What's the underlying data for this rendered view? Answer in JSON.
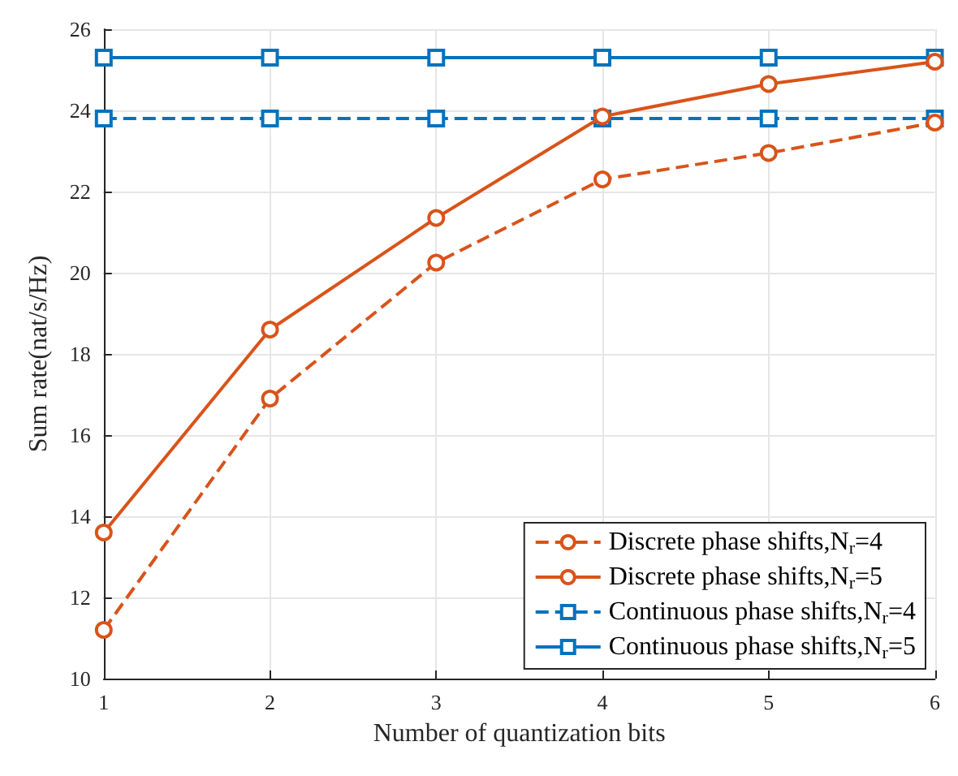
{
  "chart_data": {
    "type": "line",
    "xlabel": "Number of quantization bits",
    "ylabel": "Sum rate(nat/s/Hz)",
    "x": [
      1,
      2,
      3,
      4,
      5,
      6
    ],
    "xlim": [
      1,
      6
    ],
    "xticks": [
      1,
      2,
      3,
      4,
      5,
      6
    ],
    "ylim": [
      10,
      26
    ],
    "yticks": [
      10,
      12,
      14,
      16,
      18,
      20,
      22,
      24,
      26
    ],
    "grid": true,
    "legend": "bottom right",
    "series": [
      {
        "name": "Discrete phase shifts,N$_{r}$=4",
        "color": "#d95319",
        "marker": "circle",
        "line_style": "dashed",
        "values": [
          11.2,
          16.9,
          20.25,
          22.3,
          22.95,
          23.7
        ]
      },
      {
        "name": "Discrete phase shifts,N$_{r}$=5",
        "color": "#d95319",
        "marker": "circle",
        "line_style": "solid",
        "values": [
          13.6,
          18.6,
          21.35,
          23.85,
          24.65,
          25.2
        ]
      },
      {
        "name": "Continuous phase shifts,N$_{r}$=4",
        "color": "#0072bd",
        "marker": "square",
        "line_style": "dashed",
        "values": [
          23.8,
          23.8,
          23.8,
          23.8,
          23.8,
          23.8
        ]
      },
      {
        "name": "Continuous phase shifts,N$_{r}$=5",
        "color": "#0072bd",
        "marker": "square",
        "line_style": "solid",
        "values": [
          25.3,
          25.3,
          25.3,
          25.3,
          25.3,
          25.3
        ]
      }
    ]
  }
}
